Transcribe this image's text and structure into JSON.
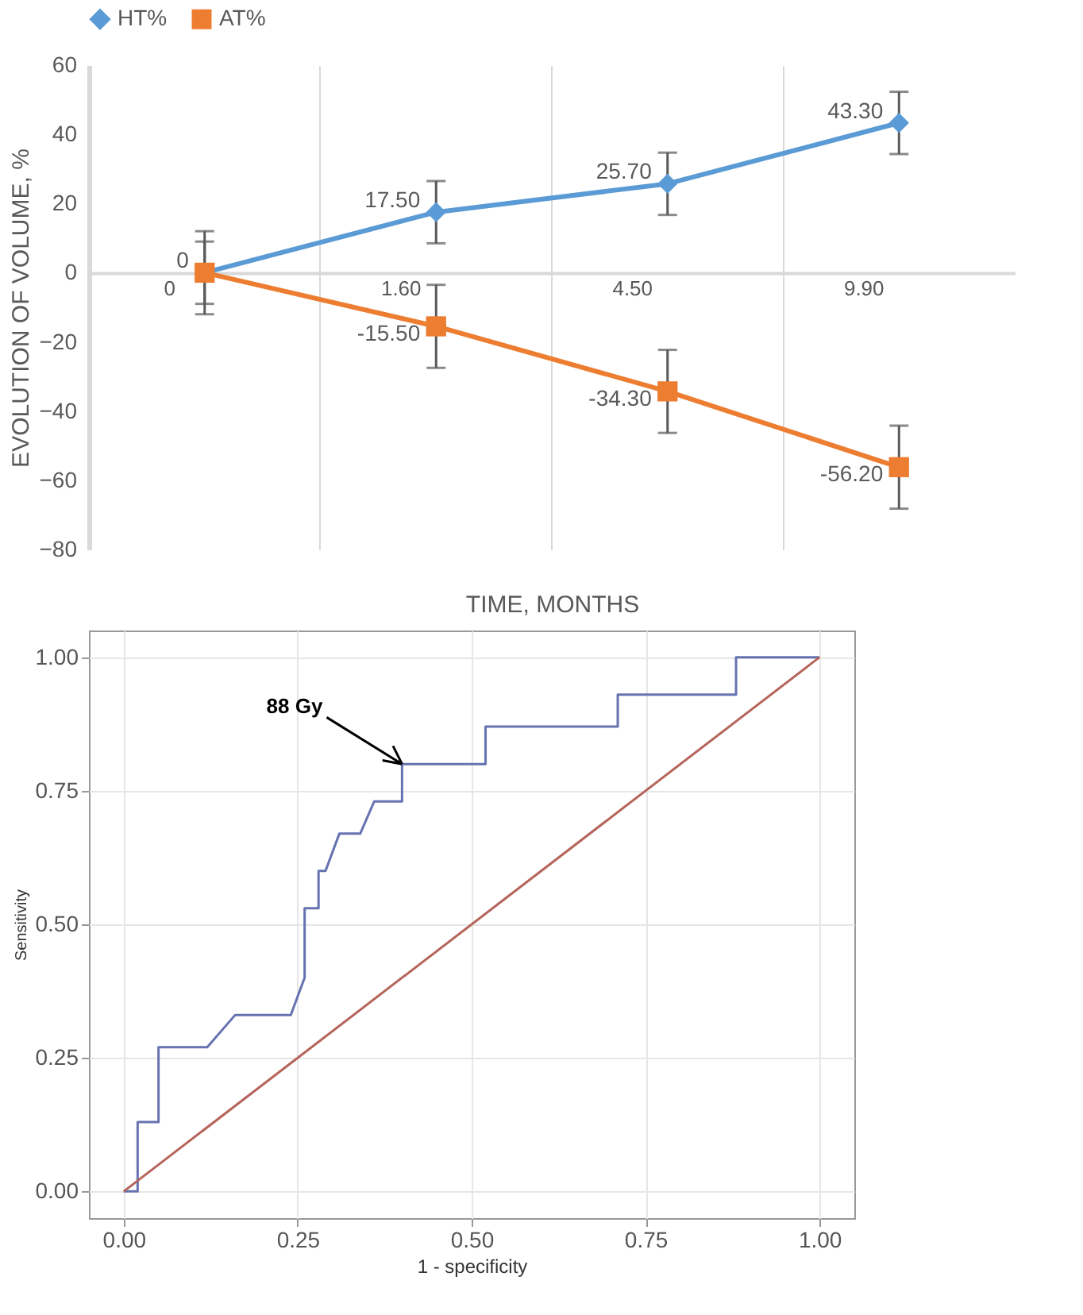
{
  "chart_data": [
    {
      "type": "line",
      "categories": [
        "0",
        "1.60",
        "4.50",
        "9.90"
      ],
      "xlabel": "TIME, MONTHS",
      "ylabel": "EVOLUTION OF VOLUME, %",
      "ylim": [
        -80,
        60
      ],
      "yticks": [
        -80,
        -60,
        -40,
        -20,
        0,
        20,
        40,
        60
      ],
      "grid": "x",
      "legend": "top",
      "series": [
        {
          "name": "HT%",
          "color": "#5b9bd5",
          "marker": "diamond",
          "values": [
            0,
            17.5,
            25.7,
            43.3
          ],
          "errors": [
            9,
            9,
            9,
            9
          ],
          "value_labels": [
            "0",
            "17.50",
            "25.70",
            "43.30"
          ]
        },
        {
          "name": "AT%",
          "color": "#ed7d31",
          "marker": "square",
          "values": [
            0,
            -15.5,
            -34.3,
            -56.2
          ],
          "errors": [
            12,
            12,
            12,
            12
          ],
          "value_labels": [
            null,
            "-15.50",
            "-34.30",
            "-56.20"
          ]
        }
      ]
    },
    {
      "type": "line",
      "xlabel": "1 - specificity",
      "ylabel": "Sensitivity",
      "xlim": [
        -0.05,
        1.05
      ],
      "ylim": [
        -0.05,
        1.05
      ],
      "grid": true,
      "legend": false,
      "marker": "none",
      "xticks": [
        {
          "value": 0,
          "label": "0.00"
        },
        {
          "value": 0.25,
          "label": "0.25"
        },
        {
          "value": 0.5,
          "label": "0.50"
        },
        {
          "value": 0.75,
          "label": "0.75"
        },
        {
          "value": 1,
          "label": "1.00"
        }
      ],
      "yticks": [
        {
          "value": 0,
          "label": "0.00"
        },
        {
          "value": 0.25,
          "label": "0.25"
        },
        {
          "value": 0.5,
          "label": "0.50"
        },
        {
          "value": 0.75,
          "label": "0.75"
        },
        {
          "value": 1,
          "label": "1.00"
        }
      ],
      "annotations": [
        {
          "text": "88 Gy",
          "x": 0.4,
          "y": 0.8
        }
      ],
      "series": [
        {
          "color": "#6673b0",
          "x": [
            0,
            0.02,
            0.02,
            0.05,
            0.05,
            0.12,
            0.16,
            0.24,
            0.26,
            0.26,
            0.28,
            0.28,
            0.29,
            0.31,
            0.34,
            0.36,
            0.4,
            0.4,
            0.52,
            0.52,
            0.71,
            0.71,
            0.88,
            0.88,
            1.0
          ],
          "values": [
            0,
            0,
            0.13,
            0.13,
            0.27,
            0.27,
            0.33,
            0.33,
            0.4,
            0.53,
            0.53,
            0.6,
            0.6,
            0.67,
            0.67,
            0.73,
            0.73,
            0.8,
            0.8,
            0.87,
            0.87,
            0.93,
            0.93,
            1.0,
            1.0
          ]
        },
        {
          "color": "#b5655a",
          "x": [
            0,
            1
          ],
          "values": [
            0,
            1
          ]
        }
      ]
    }
  ]
}
